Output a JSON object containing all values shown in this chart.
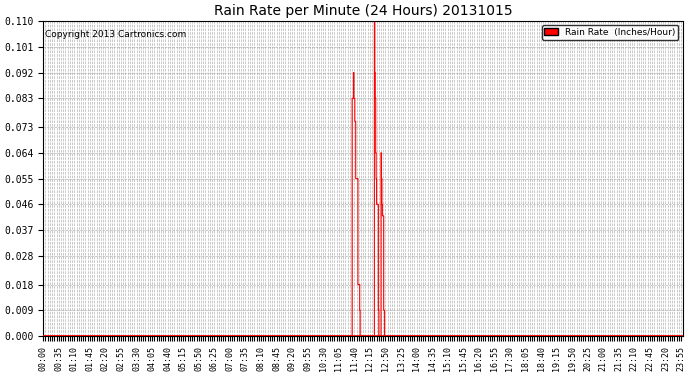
{
  "title": "Rain Rate per Minute (24 Hours) 20131015",
  "copyright": "Copyright 2013 Cartronics.com",
  "legend_label": "Rain Rate  (Inches/Hour)",
  "ylabel_values": [
    0.0,
    0.009,
    0.018,
    0.028,
    0.037,
    0.046,
    0.055,
    0.064,
    0.073,
    0.083,
    0.092,
    0.101,
    0.11
  ],
  "ylim": [
    0.0,
    0.11
  ],
  "background_color": "#ffffff",
  "line_color": "#ff0000",
  "grid_color": "#aaaaaa",
  "label_interval_minutes": 35,
  "minor_tick_interval_minutes": 5,
  "time_series": {
    "minutes_with_rain": [
      {
        "minute": 695,
        "value": 0.083
      },
      {
        "minute": 696,
        "value": 0.083
      },
      {
        "minute": 697,
        "value": 0.083
      },
      {
        "minute": 698,
        "value": 0.092
      },
      {
        "minute": 699,
        "value": 0.083
      },
      {
        "minute": 700,
        "value": 0.083
      },
      {
        "minute": 701,
        "value": 0.075
      },
      {
        "minute": 702,
        "value": 0.075
      },
      {
        "minute": 703,
        "value": 0.055
      },
      {
        "minute": 704,
        "value": 0.055
      },
      {
        "minute": 705,
        "value": 0.055
      },
      {
        "minute": 706,
        "value": 0.055
      },
      {
        "minute": 707,
        "value": 0.055
      },
      {
        "minute": 708,
        "value": 0.018
      },
      {
        "minute": 709,
        "value": 0.018
      },
      {
        "minute": 710,
        "value": 0.018
      },
      {
        "minute": 711,
        "value": 0.018
      },
      {
        "minute": 712,
        "value": 0.009
      },
      {
        "minute": 745,
        "value": 0.11
      },
      {
        "minute": 746,
        "value": 0.092
      },
      {
        "minute": 747,
        "value": 0.083
      },
      {
        "minute": 748,
        "value": 0.064
      },
      {
        "minute": 749,
        "value": 0.055
      },
      {
        "minute": 750,
        "value": 0.046
      },
      {
        "minute": 751,
        "value": 0.046
      },
      {
        "minute": 752,
        "value": 0.046
      },
      {
        "minute": 753,
        "value": 0.046
      },
      {
        "minute": 754,
        "value": 0.009
      },
      {
        "minute": 760,
        "value": 0.064
      },
      {
        "minute": 761,
        "value": 0.055
      },
      {
        "minute": 762,
        "value": 0.046
      },
      {
        "minute": 763,
        "value": 0.042
      },
      {
        "minute": 764,
        "value": 0.042
      },
      {
        "minute": 765,
        "value": 0.042
      },
      {
        "minute": 766,
        "value": 0.009
      },
      {
        "minute": 767,
        "value": 0.009
      }
    ],
    "total_minutes": 1440
  }
}
